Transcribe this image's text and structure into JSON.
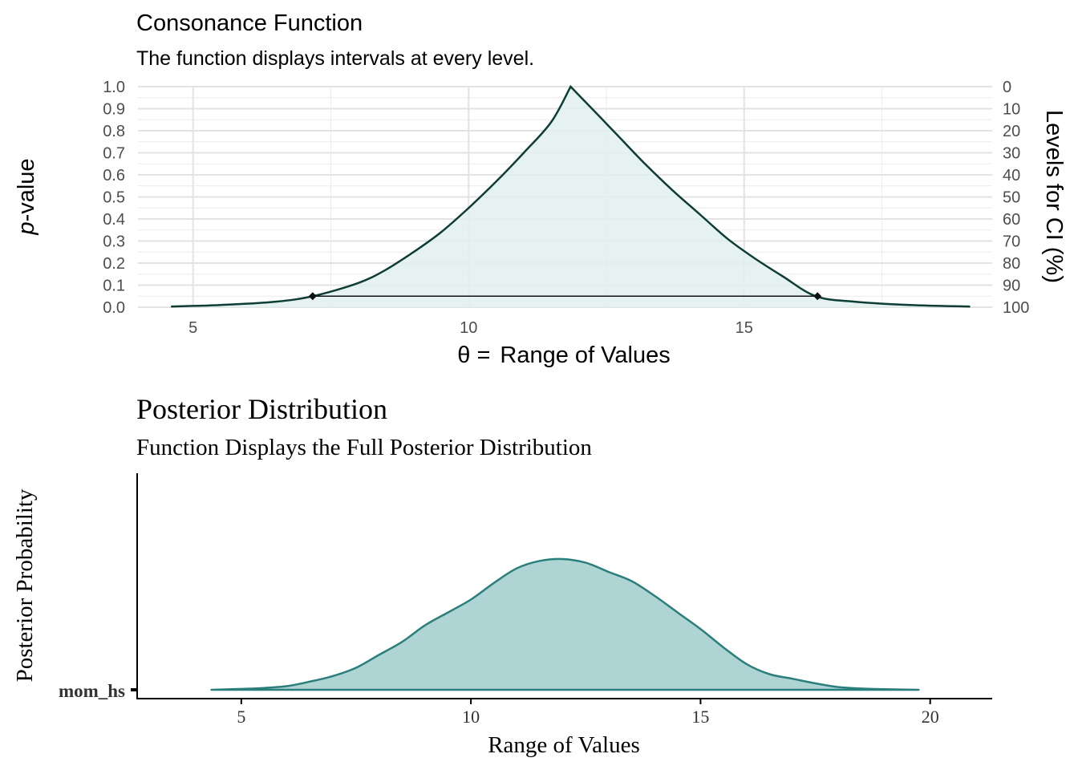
{
  "chart_data": [
    {
      "type": "line",
      "title": "Consonance Function",
      "subtitle": "The function displays intervals at every level.",
      "xlabel_symbol": "θ =",
      "xlabel": "Range of Values",
      "ylabel_italic": "p",
      "ylabel_rest": "-value",
      "y2label": "Levels for CI (%)",
      "xlim": [
        4,
        19.5
      ],
      "ylim": [
        0,
        1
      ],
      "x_ticks": [
        5,
        10,
        15
      ],
      "y_ticks": [
        0.0,
        0.1,
        0.2,
        0.3,
        0.4,
        0.5,
        0.6,
        0.7,
        0.8,
        0.9,
        1.0
      ],
      "y_tick_labels": [
        "0.0",
        "0.1",
        "0.2",
        "0.3",
        "0.4",
        "0.5",
        "0.6",
        "0.7",
        "0.8",
        "0.9",
        "1.0"
      ],
      "y2_tick_labels": [
        "100",
        "90",
        "80",
        "70",
        "60",
        "50",
        "40",
        "30",
        "20",
        "10",
        "0"
      ],
      "grid": true,
      "fill_color": "#e2f0ef",
      "line_color": "#0d3d34",
      "series": [
        {
          "x": [
            4.6,
            5.5,
            6.5,
            7.17,
            8.0,
            8.5,
            9.0,
            9.5,
            10.0,
            10.5,
            11.0,
            11.5,
            11.85,
            12.2,
            12.7,
            13.2,
            13.7,
            14.2,
            14.7,
            15.2,
            15.7,
            16.3,
            17.0,
            18.0,
            19.1
          ],
          "values": [
            0.003,
            0.01,
            0.025,
            0.05,
            0.11,
            0.17,
            0.25,
            0.34,
            0.45,
            0.57,
            0.7,
            0.84,
            1.0,
            0.91,
            0.78,
            0.65,
            0.53,
            0.42,
            0.31,
            0.22,
            0.14,
            0.05,
            0.025,
            0.01,
            0.003
          ]
        }
      ],
      "interval": {
        "lower": 7.17,
        "upper": 16.33,
        "p": 0.05
      }
    },
    {
      "type": "area",
      "title": "Posterior Distribution",
      "subtitle": "Function Displays the Full Posterior Distribution",
      "xlabel": "Range of Values",
      "ylabel": "Posterior Probability",
      "category": "mom_hs",
      "xlim": [
        2.75,
        21.35
      ],
      "x_ticks": [
        5,
        10,
        15,
        20
      ],
      "fill_color": "#aed5d4",
      "line_color": "#2a7f7c",
      "series": [
        {
          "x": [
            4.35,
            5.0,
            5.5,
            6.0,
            6.5,
            7.0,
            7.5,
            8.0,
            8.5,
            9.0,
            9.5,
            10.0,
            10.5,
            11.0,
            11.5,
            12.0,
            12.5,
            13.0,
            13.5,
            14.0,
            14.5,
            15.0,
            15.5,
            16.0,
            16.5,
            17.0,
            17.5,
            18.0,
            18.5,
            19.0,
            19.75
          ],
          "values": [
            0.0,
            0.005,
            0.01,
            0.02,
            0.045,
            0.075,
            0.12,
            0.19,
            0.26,
            0.35,
            0.42,
            0.49,
            0.58,
            0.66,
            0.7,
            0.71,
            0.69,
            0.64,
            0.59,
            0.51,
            0.42,
            0.33,
            0.23,
            0.14,
            0.085,
            0.06,
            0.035,
            0.015,
            0.007,
            0.003,
            0.0
          ]
        }
      ]
    }
  ]
}
